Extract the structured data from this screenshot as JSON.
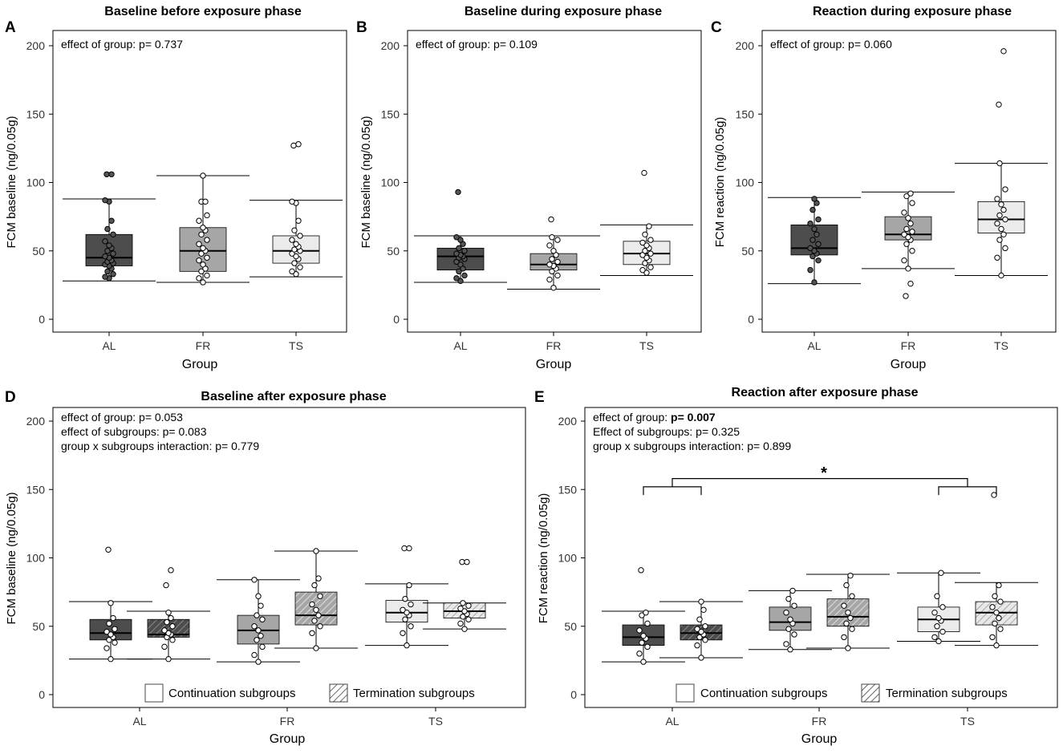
{
  "figure": {
    "colors": {
      "AL": "#4d4d4d",
      "FR": "#a6a6a6",
      "TS": "#ebebeb",
      "TS_term": "#d9d9d9",
      "axis": "#000000",
      "dot": "#ffffff"
    }
  },
  "chart_data": [
    {
      "type": "box",
      "letter": "A",
      "title": "Baseline before exposure phase",
      "ylabel": "FCM baseline (ng/0.05g)",
      "xlabel": "Group",
      "ylim": [
        0,
        200
      ],
      "yticks": [
        0,
        50,
        100,
        150,
        200
      ],
      "categories": [
        "AL",
        "FR",
        "TS"
      ],
      "annotations": [
        {
          "prefix": "effect of group: ",
          "value": "p= 0.737",
          "bold": false
        }
      ],
      "groups": [
        {
          "name": "AL",
          "pattern": "solid",
          "min": 28,
          "q1": 39,
          "median": 45,
          "q3": 62,
          "max": 88,
          "outliers": [
            106,
            106
          ],
          "points": [
            30,
            31,
            33,
            35,
            37,
            39,
            40,
            41,
            42,
            43,
            45,
            46,
            48,
            50,
            52,
            54,
            57,
            62,
            66,
            72,
            86,
            87
          ]
        },
        {
          "name": "FR",
          "pattern": "solid",
          "min": 27,
          "q1": 35,
          "median": 50,
          "q3": 67,
          "max": 105,
          "outliers": [],
          "points": [
            27,
            30,
            32,
            35,
            37,
            40,
            43,
            45,
            48,
            50,
            52,
            55,
            58,
            62,
            65,
            67,
            72,
            76,
            86,
            86,
            105
          ]
        },
        {
          "name": "TS",
          "pattern": "solid",
          "min": 31,
          "q1": 41,
          "median": 50,
          "q3": 61,
          "max": 87,
          "outliers": [
            127,
            128
          ],
          "points": [
            33,
            35,
            38,
            41,
            44,
            46,
            48,
            50,
            51,
            53,
            55,
            58,
            61,
            65,
            72,
            85,
            86
          ]
        }
      ]
    },
    {
      "type": "box",
      "letter": "B",
      "title": "Baseline during exposure phase",
      "ylabel": "FCM baseline (ng/0.05g)",
      "xlabel": "Group",
      "ylim": [
        0,
        200
      ],
      "yticks": [
        0,
        50,
        100,
        150,
        200
      ],
      "categories": [
        "AL",
        "FR",
        "TS"
      ],
      "annotations": [
        {
          "prefix": "effect of group: ",
          "value": "p= 0.109",
          "bold": false
        }
      ],
      "groups": [
        {
          "name": "AL",
          "pattern": "solid",
          "min": 27,
          "q1": 36,
          "median": 46,
          "q3": 52,
          "max": 61,
          "outliers": [
            93
          ],
          "points": [
            28,
            30,
            32,
            35,
            37,
            40,
            42,
            44,
            45,
            46,
            47,
            48,
            50,
            52,
            55,
            58,
            60
          ]
        },
        {
          "name": "FR",
          "pattern": "solid",
          "min": 22,
          "q1": 36,
          "median": 40,
          "q3": 48,
          "max": 61,
          "outliers": [
            73
          ],
          "points": [
            23,
            29,
            32,
            35,
            37,
            39,
            40,
            42,
            44,
            47,
            50,
            54,
            58,
            60
          ]
        },
        {
          "name": "TS",
          "pattern": "solid",
          "min": 32,
          "q1": 40,
          "median": 48,
          "q3": 57,
          "max": 69,
          "outliers": [
            107
          ],
          "points": [
            34,
            36,
            38,
            41,
            43,
            45,
            47,
            48,
            50,
            52,
            54,
            56,
            58,
            62,
            68
          ]
        }
      ]
    },
    {
      "type": "box",
      "letter": "C",
      "title": "Reaction during exposure phase",
      "ylabel": "FCM reaction (ng/0.05g)",
      "xlabel": "Group",
      "ylim": [
        0,
        200
      ],
      "yticks": [
        0,
        50,
        100,
        150,
        200
      ],
      "categories": [
        "AL",
        "FR",
        "TS"
      ],
      "annotations": [
        {
          "prefix": "effect of group: ",
          "value": "p= 0.060",
          "bold": false
        }
      ],
      "groups": [
        {
          "name": "AL",
          "pattern": "solid",
          "min": 26,
          "q1": 47,
          "median": 52,
          "q3": 69,
          "max": 89,
          "outliers": [],
          "points": [
            27,
            36,
            43,
            46,
            48,
            50,
            52,
            55,
            58,
            62,
            66,
            70,
            73,
            80,
            85,
            88
          ]
        },
        {
          "name": "FR",
          "pattern": "solid",
          "min": 37,
          "q1": 58,
          "median": 62,
          "q3": 75,
          "max": 93,
          "outliers": [
            17,
            26
          ],
          "points": [
            37,
            43,
            50,
            55,
            58,
            60,
            62,
            64,
            66,
            70,
            74,
            78,
            85,
            90,
            92
          ]
        },
        {
          "name": "TS",
          "pattern": "solid",
          "min": 32,
          "q1": 63,
          "median": 73,
          "q3": 86,
          "max": 114,
          "outliers": [
            157,
            196
          ],
          "points": [
            32,
            45,
            52,
            58,
            62,
            66,
            70,
            73,
            76,
            80,
            84,
            88,
            95,
            114
          ]
        }
      ]
    },
    {
      "type": "box",
      "letter": "D",
      "title": "Baseline after exposure phase",
      "ylabel": "FCM baseline (ng/0.05g)",
      "xlabel": "Group",
      "ylim": [
        0,
        200
      ],
      "yticks": [
        0,
        50,
        100,
        150,
        200
      ],
      "categories": [
        "AL",
        "FR",
        "TS"
      ],
      "annotations": [
        {
          "prefix": "effect of group: ",
          "value": "p= 0.053",
          "bold": false
        },
        {
          "prefix": "effect of subgroups: ",
          "value": "p= 0.083",
          "bold": false
        },
        {
          "prefix": "group x subgroups interaction: ",
          "value": "p= 0.779",
          "bold": false
        }
      ],
      "legend": {
        "continuation": "Continuation subgroups",
        "termination": "Termination subgroups"
      },
      "groups": [
        {
          "name": "AL",
          "pattern": "solid",
          "min": 26,
          "q1": 40,
          "median": 45,
          "q3": 55,
          "max": 68,
          "outliers": [
            106
          ],
          "points": [
            26,
            34,
            38,
            40,
            42,
            44,
            46,
            48,
            52,
            56,
            67
          ]
        },
        {
          "name": "AL",
          "pattern": "hatch",
          "min": 26,
          "q1": 42,
          "median": 44,
          "q3": 55,
          "max": 61,
          "outliers": [
            80,
            91
          ],
          "points": [
            26,
            35,
            40,
            42,
            44,
            45,
            47,
            50,
            53,
            56,
            60
          ]
        },
        {
          "name": "FR",
          "pattern": "solid",
          "min": 24,
          "q1": 37,
          "median": 47,
          "q3": 58,
          "max": 84,
          "outliers": [],
          "points": [
            24,
            29,
            35,
            40,
            43,
            47,
            50,
            55,
            58,
            65,
            72,
            84
          ]
        },
        {
          "name": "FR",
          "pattern": "hatch",
          "min": 34,
          "q1": 51,
          "median": 58,
          "q3": 75,
          "max": 105,
          "outliers": [],
          "points": [
            34,
            45,
            50,
            54,
            58,
            62,
            66,
            72,
            80,
            85,
            105
          ]
        },
        {
          "name": "TS",
          "pattern": "solid",
          "min": 36,
          "q1": 53,
          "median": 60,
          "q3": 69,
          "max": 81,
          "outliers": [
            107,
            107
          ],
          "points": [
            36,
            45,
            50,
            55,
            58,
            60,
            62,
            66,
            70,
            80
          ]
        },
        {
          "name": "TS",
          "pattern": "hatch",
          "min": 48,
          "q1": 56,
          "median": 61,
          "q3": 67,
          "max": 67,
          "outliers": [
            97,
            97
          ],
          "points": [
            48,
            52,
            55,
            57,
            59,
            61,
            63,
            65,
            67
          ]
        }
      ]
    },
    {
      "type": "box",
      "letter": "E",
      "title": "Reaction after exposure phase",
      "ylabel": "FCM reaction (ng/0.05g)",
      "xlabel": "Group",
      "ylim": [
        0,
        200
      ],
      "yticks": [
        0,
        50,
        100,
        150,
        200
      ],
      "categories": [
        "AL",
        "FR",
        "TS"
      ],
      "annotations": [
        {
          "prefix": "effect of group: ",
          "value": "p= 0.007",
          "bold": true
        },
        {
          "prefix": "Effect of subgroups: ",
          "value": "p= 0.325",
          "bold": false
        },
        {
          "prefix": "group x subgroups interaction: ",
          "value": "p= 0.899",
          "bold": false
        }
      ],
      "significance": {
        "label": "*",
        "from": "AL",
        "to": "TS",
        "value": 158
      },
      "legend": {
        "continuation": "Continuation subgroups",
        "termination": "Termination subgroups"
      },
      "groups": [
        {
          "name": "AL",
          "pattern": "solid",
          "min": 24,
          "q1": 36,
          "median": 42,
          "q3": 51,
          "max": 61,
          "outliers": [
            91
          ],
          "points": [
            24,
            30,
            35,
            38,
            41,
            43,
            47,
            52,
            58,
            60
          ]
        },
        {
          "name": "AL",
          "pattern": "hatch",
          "min": 27,
          "q1": 40,
          "median": 45,
          "q3": 51,
          "max": 68,
          "outliers": [],
          "points": [
            27,
            36,
            40,
            42,
            44,
            46,
            48,
            50,
            55,
            62,
            68
          ]
        },
        {
          "name": "FR",
          "pattern": "solid",
          "min": 33,
          "q1": 47,
          "median": 53,
          "q3": 64,
          "max": 76,
          "outliers": [],
          "points": [
            33,
            37,
            44,
            48,
            52,
            55,
            60,
            65,
            70,
            76
          ]
        },
        {
          "name": "FR",
          "pattern": "hatch",
          "min": 34,
          "q1": 50,
          "median": 57,
          "q3": 70,
          "max": 88,
          "outliers": [],
          "points": [
            34,
            42,
            48,
            52,
            56,
            60,
            65,
            72,
            80,
            87
          ]
        },
        {
          "name": "TS",
          "pattern": "solid",
          "min": 39,
          "q1": 46,
          "median": 55,
          "q3": 64,
          "max": 89,
          "outliers": [],
          "points": [
            39,
            42,
            46,
            50,
            54,
            56,
            60,
            64,
            72,
            89
          ]
        },
        {
          "name": "TS",
          "pattern": "hatch",
          "min": 36,
          "q1": 51,
          "median": 60,
          "q3": 68,
          "max": 82,
          "outliers": [
            146
          ],
          "points": [
            36,
            42,
            48,
            52,
            56,
            60,
            64,
            68,
            72,
            80
          ]
        }
      ]
    }
  ]
}
